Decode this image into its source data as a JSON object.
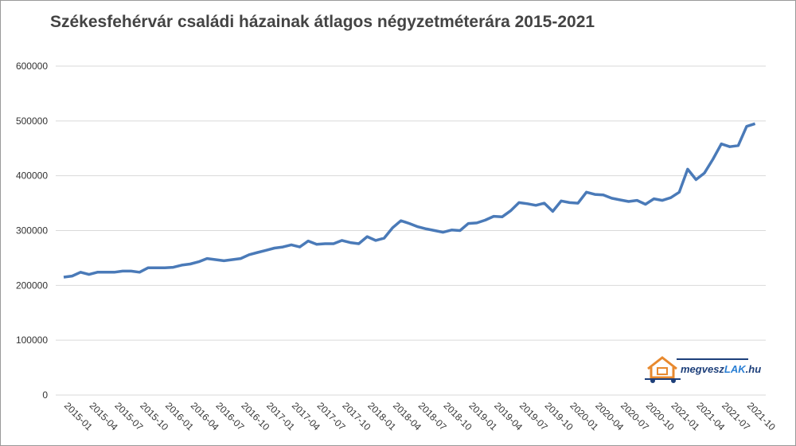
{
  "chart_data": {
    "type": "line",
    "title": "Székesfehérvár családi házainak átlagos négyzetméterára 2015-2021",
    "categories": [
      "2015-01",
      null,
      null,
      "2015-04",
      null,
      null,
      "2015-07",
      null,
      null,
      "2015-10",
      null,
      null,
      "2016-01",
      null,
      null,
      "2016-04",
      null,
      null,
      "2016-07",
      null,
      null,
      "2016-10",
      null,
      null,
      "2017-01",
      null,
      null,
      "2017-04",
      null,
      null,
      "2017-07",
      null,
      null,
      "2017-10",
      null,
      null,
      "2018-01",
      null,
      null,
      "2018-04",
      null,
      null,
      "2018-07",
      null,
      null,
      "2018-10",
      null,
      null,
      "2019-01",
      null,
      null,
      "2019-04",
      null,
      null,
      "2019-07",
      null,
      null,
      "2019-10",
      null,
      null,
      "2020-01",
      null,
      null,
      "2020-04",
      null,
      null,
      "2020-07",
      null,
      null,
      "2020-10",
      null,
      null,
      "2021-01",
      null,
      null,
      "2021-04",
      null,
      null,
      "2021-07",
      null,
      null,
      "2021-10",
      null
    ],
    "series": [
      {
        "name": "Átlagos négyzetméterár",
        "color": "#4a7ab8",
        "values": [
          215000,
          217000,
          224000,
          220000,
          224000,
          224000,
          224000,
          226000,
          226000,
          224000,
          232000,
          232000,
          232000,
          233000,
          237000,
          239000,
          243000,
          249000,
          247000,
          245000,
          247000,
          249000,
          256000,
          260000,
          264000,
          268000,
          270000,
          274000,
          270000,
          281000,
          275000,
          276000,
          276000,
          282000,
          278000,
          276000,
          289000,
          282000,
          286000,
          305000,
          318000,
          313000,
          307000,
          303000,
          300000,
          297000,
          301000,
          300000,
          313000,
          314000,
          319000,
          326000,
          325000,
          336000,
          351000,
          349000,
          346000,
          350000,
          335000,
          354000,
          351000,
          350000,
          370000,
          366000,
          365000,
          359000,
          356000,
          353000,
          355000,
          348000,
          358000,
          355000,
          360000,
          370000,
          412000,
          393000,
          405000,
          430000,
          458000,
          453000,
          455000,
          490000,
          495000
        ]
      }
    ],
    "ylim": [
      0,
      600000
    ],
    "yticks": [
      0,
      100000,
      200000,
      300000,
      400000,
      500000,
      600000
    ],
    "grid": true,
    "logo": {
      "parts": [
        "megvesz",
        "LAK",
        ".hu"
      ]
    }
  }
}
